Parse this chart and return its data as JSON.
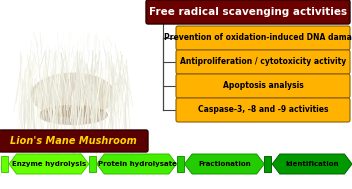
{
  "title": "Free radical scavenging activities",
  "title_bg": "#6B0000",
  "title_text_color": "#FFFFFF",
  "mushroom_label": "Lion's Mane Mushroom",
  "mushroom_label_bg": "#5A0000",
  "mushroom_label_text_color": "#FFD700",
  "right_boxes": [
    "Prevention of oxidation-induced DNA damage",
    "Antiproliferation / cytotoxicity activity",
    "Apoptosis analysis",
    "Caspase-3, -8 and -9 activities"
  ],
  "right_box_bg": "#FFB300",
  "right_box_text_color": "#000000",
  "right_box_border": "#8B6000",
  "arrows": [
    {
      "label": "Enzyme hydrolysis",
      "color": "#66FF00",
      "dark_color": "#44CC00"
    },
    {
      "label": "Protein hydrolysate",
      "color": "#44EE00",
      "dark_color": "#33BB00"
    },
    {
      "label": "Fractionation",
      "color": "#22CC00",
      "dark_color": "#119900"
    },
    {
      "label": "Identification",
      "color": "#009900",
      "dark_color": "#006600"
    }
  ],
  "arrow_text_color": "#000000",
  "background_color": "#FFFFFF",
  "fig_width": 3.52,
  "fig_height": 1.89,
  "dpi": 100
}
